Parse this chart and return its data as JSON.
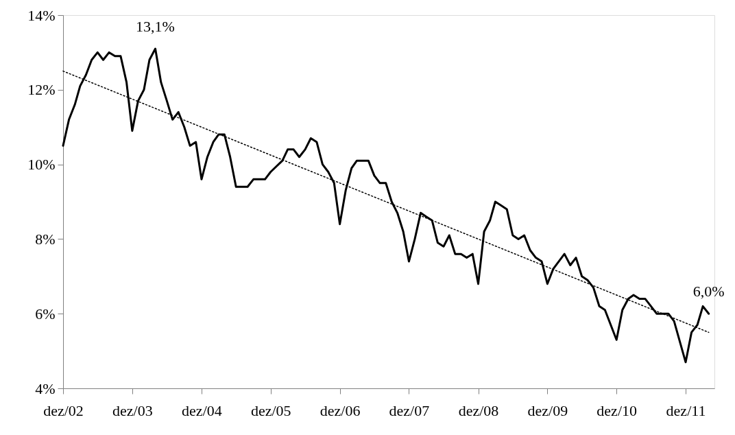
{
  "chart_data": {
    "type": "line",
    "xlim": [
      "2002-12",
      "2012-05"
    ],
    "xticks": [
      {
        "value": "2002-12",
        "label": "dez/02"
      },
      {
        "value": "2003-12",
        "label": "dez/03"
      },
      {
        "value": "2004-12",
        "label": "dez/04"
      },
      {
        "value": "2005-12",
        "label": "dez/05"
      },
      {
        "value": "2006-12",
        "label": "dez/06"
      },
      {
        "value": "2007-12",
        "label": "dez/07"
      },
      {
        "value": "2008-12",
        "label": "dez/08"
      },
      {
        "value": "2009-12",
        "label": "dez/09"
      },
      {
        "value": "2010-12",
        "label": "dez/10"
      },
      {
        "value": "2011-12",
        "label": "dez/11"
      }
    ],
    "ylim": [
      4,
      14
    ],
    "yticks": [
      {
        "value": 4,
        "label": "4%"
      },
      {
        "value": 6,
        "label": "6%"
      },
      {
        "value": 8,
        "label": "8%"
      },
      {
        "value": 10,
        "label": "10%"
      },
      {
        "value": 12,
        "label": "12%"
      },
      {
        "value": 14,
        "label": "14%"
      }
    ],
    "series": [
      {
        "type": "line",
        "color": "#000000",
        "line_style": "solid",
        "x": [
          "2002-12",
          "2003-01",
          "2003-02",
          "2003-03",
          "2003-04",
          "2003-05",
          "2003-06",
          "2003-07",
          "2003-08",
          "2003-09",
          "2003-10",
          "2003-11",
          "2003-12",
          "2004-01",
          "2004-02",
          "2004-03",
          "2004-04",
          "2004-05",
          "2004-06",
          "2004-07",
          "2004-08",
          "2004-09",
          "2004-10",
          "2004-11",
          "2004-12",
          "2005-01",
          "2005-02",
          "2005-03",
          "2005-04",
          "2005-05",
          "2005-06",
          "2005-08",
          "2005-09",
          "2005-11",
          "2005-12",
          "2006-02",
          "2006-03",
          "2006-04",
          "2006-05",
          "2006-06",
          "2006-07",
          "2006-08",
          "2006-09",
          "2006-10",
          "2006-11",
          "2006-12",
          "2007-01",
          "2007-02",
          "2007-03",
          "2007-05",
          "2007-06",
          "2007-07",
          "2007-08",
          "2007-09",
          "2007-10",
          "2007-11",
          "2007-12",
          "2008-01",
          "2008-02",
          "2008-03",
          "2008-04",
          "2008-05",
          "2008-06",
          "2008-07",
          "2008-08",
          "2008-09",
          "2008-10",
          "2008-11",
          "2008-12",
          "2009-01",
          "2009-02",
          "2009-03",
          "2009-04",
          "2009-05",
          "2009-06",
          "2009-07",
          "2009-08",
          "2009-09",
          "2009-10",
          "2009-11",
          "2009-12",
          "2010-01",
          "2010-03",
          "2010-04",
          "2010-05",
          "2010-06",
          "2010-07",
          "2010-08",
          "2010-09",
          "2010-10",
          "2010-12",
          "2011-01",
          "2011-02",
          "2011-03",
          "2011-04",
          "2011-05",
          "2011-06",
          "2011-07",
          "2011-09",
          "2011-10",
          "2011-12",
          "2012-01",
          "2012-02",
          "2012-03",
          "2012-04"
        ],
        "values": [
          10.5,
          11.2,
          11.6,
          12.1,
          12.4,
          12.8,
          13.0,
          12.8,
          13.0,
          12.9,
          12.9,
          12.2,
          10.9,
          11.7,
          12.0,
          12.8,
          13.1,
          12.2,
          11.7,
          11.2,
          11.4,
          11.0,
          10.5,
          10.6,
          9.6,
          10.2,
          10.6,
          10.8,
          10.8,
          10.2,
          9.4,
          9.4,
          9.6,
          9.6,
          9.8,
          10.1,
          10.4,
          10.4,
          10.2,
          10.4,
          10.7,
          10.6,
          10.0,
          9.8,
          9.5,
          8.4,
          9.3,
          9.9,
          10.1,
          10.1,
          9.7,
          9.5,
          9.5,
          9.0,
          8.7,
          8.2,
          7.4,
          8.0,
          8.7,
          8.6,
          8.5,
          7.9,
          7.8,
          8.1,
          7.6,
          7.6,
          7.5,
          7.6,
          6.8,
          8.2,
          8.5,
          9.0,
          8.9,
          8.8,
          8.1,
          8.0,
          8.1,
          7.7,
          7.5,
          7.4,
          6.8,
          7.2,
          7.6,
          7.3,
          7.5,
          7.0,
          6.9,
          6.7,
          6.2,
          6.1,
          5.3,
          6.1,
          6.4,
          6.5,
          6.4,
          6.4,
          6.2,
          6.0,
          6.0,
          5.8,
          4.7,
          5.5,
          5.7,
          6.2,
          6.0
        ]
      },
      {
        "type": "line",
        "color": "#000000",
        "line_style": "dotted",
        "x": [
          "2002-12",
          "2012-04"
        ],
        "values": [
          12.5,
          5.5
        ]
      }
    ],
    "annotations": [
      {
        "text": "13,1%",
        "x": "2004-04",
        "y": 13.1
      },
      {
        "text": "6,0%",
        "x": "2012-04",
        "y": 6.0
      }
    ]
  }
}
